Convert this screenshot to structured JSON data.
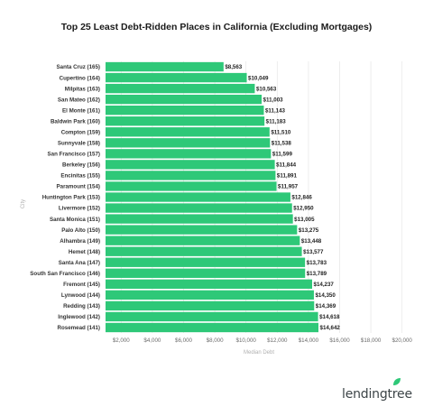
{
  "chart_data": {
    "type": "bar",
    "orientation": "horizontal",
    "title": "Top 25 Least Debt-Ridden Places in California (Excluding Mortgages)",
    "xlabel": "Median Debt",
    "ylabel": "City",
    "categories": [
      "Santa Cruz (165)",
      "Cupertino (164)",
      "Milpitas (163)",
      "San Mateo (162)",
      "El Monte (161)",
      "Baldwin Park (160)",
      "Compton (159)",
      "Sunnyvale (158)",
      "San Francisco (157)",
      "Berkeley (156)",
      "Encinitas (155)",
      "Paramount (154)",
      "Huntington Park (153)",
      "Livermore (152)",
      "Santa Monica (151)",
      "Palo Alto (150)",
      "Alhambra (149)",
      "Hemet (148)",
      "Santa Ana (147)",
      "South San Francisco (146)",
      "Fremont (145)",
      "Lynwood (144)",
      "Redding (143)",
      "Inglewood (142)",
      "Rosemead (141)"
    ],
    "values": [
      8563,
      10049,
      10563,
      11003,
      11143,
      11183,
      11510,
      11538,
      11599,
      11844,
      11891,
      11957,
      12846,
      12950,
      13005,
      13275,
      13448,
      13577,
      13783,
      13789,
      14237,
      14350,
      14369,
      14618,
      14642
    ],
    "value_labels": [
      "$8,563",
      "$10,049",
      "$10,563",
      "$11,003",
      "$11,143",
      "$11,183",
      "$11,510",
      "$11,538",
      "$11,599",
      "$11,844",
      "$11,891",
      "$11,957",
      "$12,846",
      "$12,950",
      "$13,005",
      "$13,275",
      "$13,448",
      "$13,577",
      "$13,783",
      "$13,789",
      "$14,237",
      "$14,350",
      "$14,369",
      "$14,618",
      "$14,642"
    ],
    "xlim": [
      1000,
      21000
    ],
    "x_ticks": [
      2000,
      4000,
      6000,
      8000,
      10000,
      12000,
      14000,
      16000,
      18000,
      20000
    ],
    "x_tick_labels": [
      "$2,000",
      "$4,000",
      "$6,000",
      "$8,000",
      "$10,000",
      "$12,000",
      "$14,000",
      "$16,000",
      "$18,000",
      "$20,000"
    ],
    "bar_color": "#2ec878",
    "grid": "vertical",
    "legend": "none"
  },
  "brand": {
    "name": "lendingtree",
    "leaf_color": "#2ec878"
  }
}
